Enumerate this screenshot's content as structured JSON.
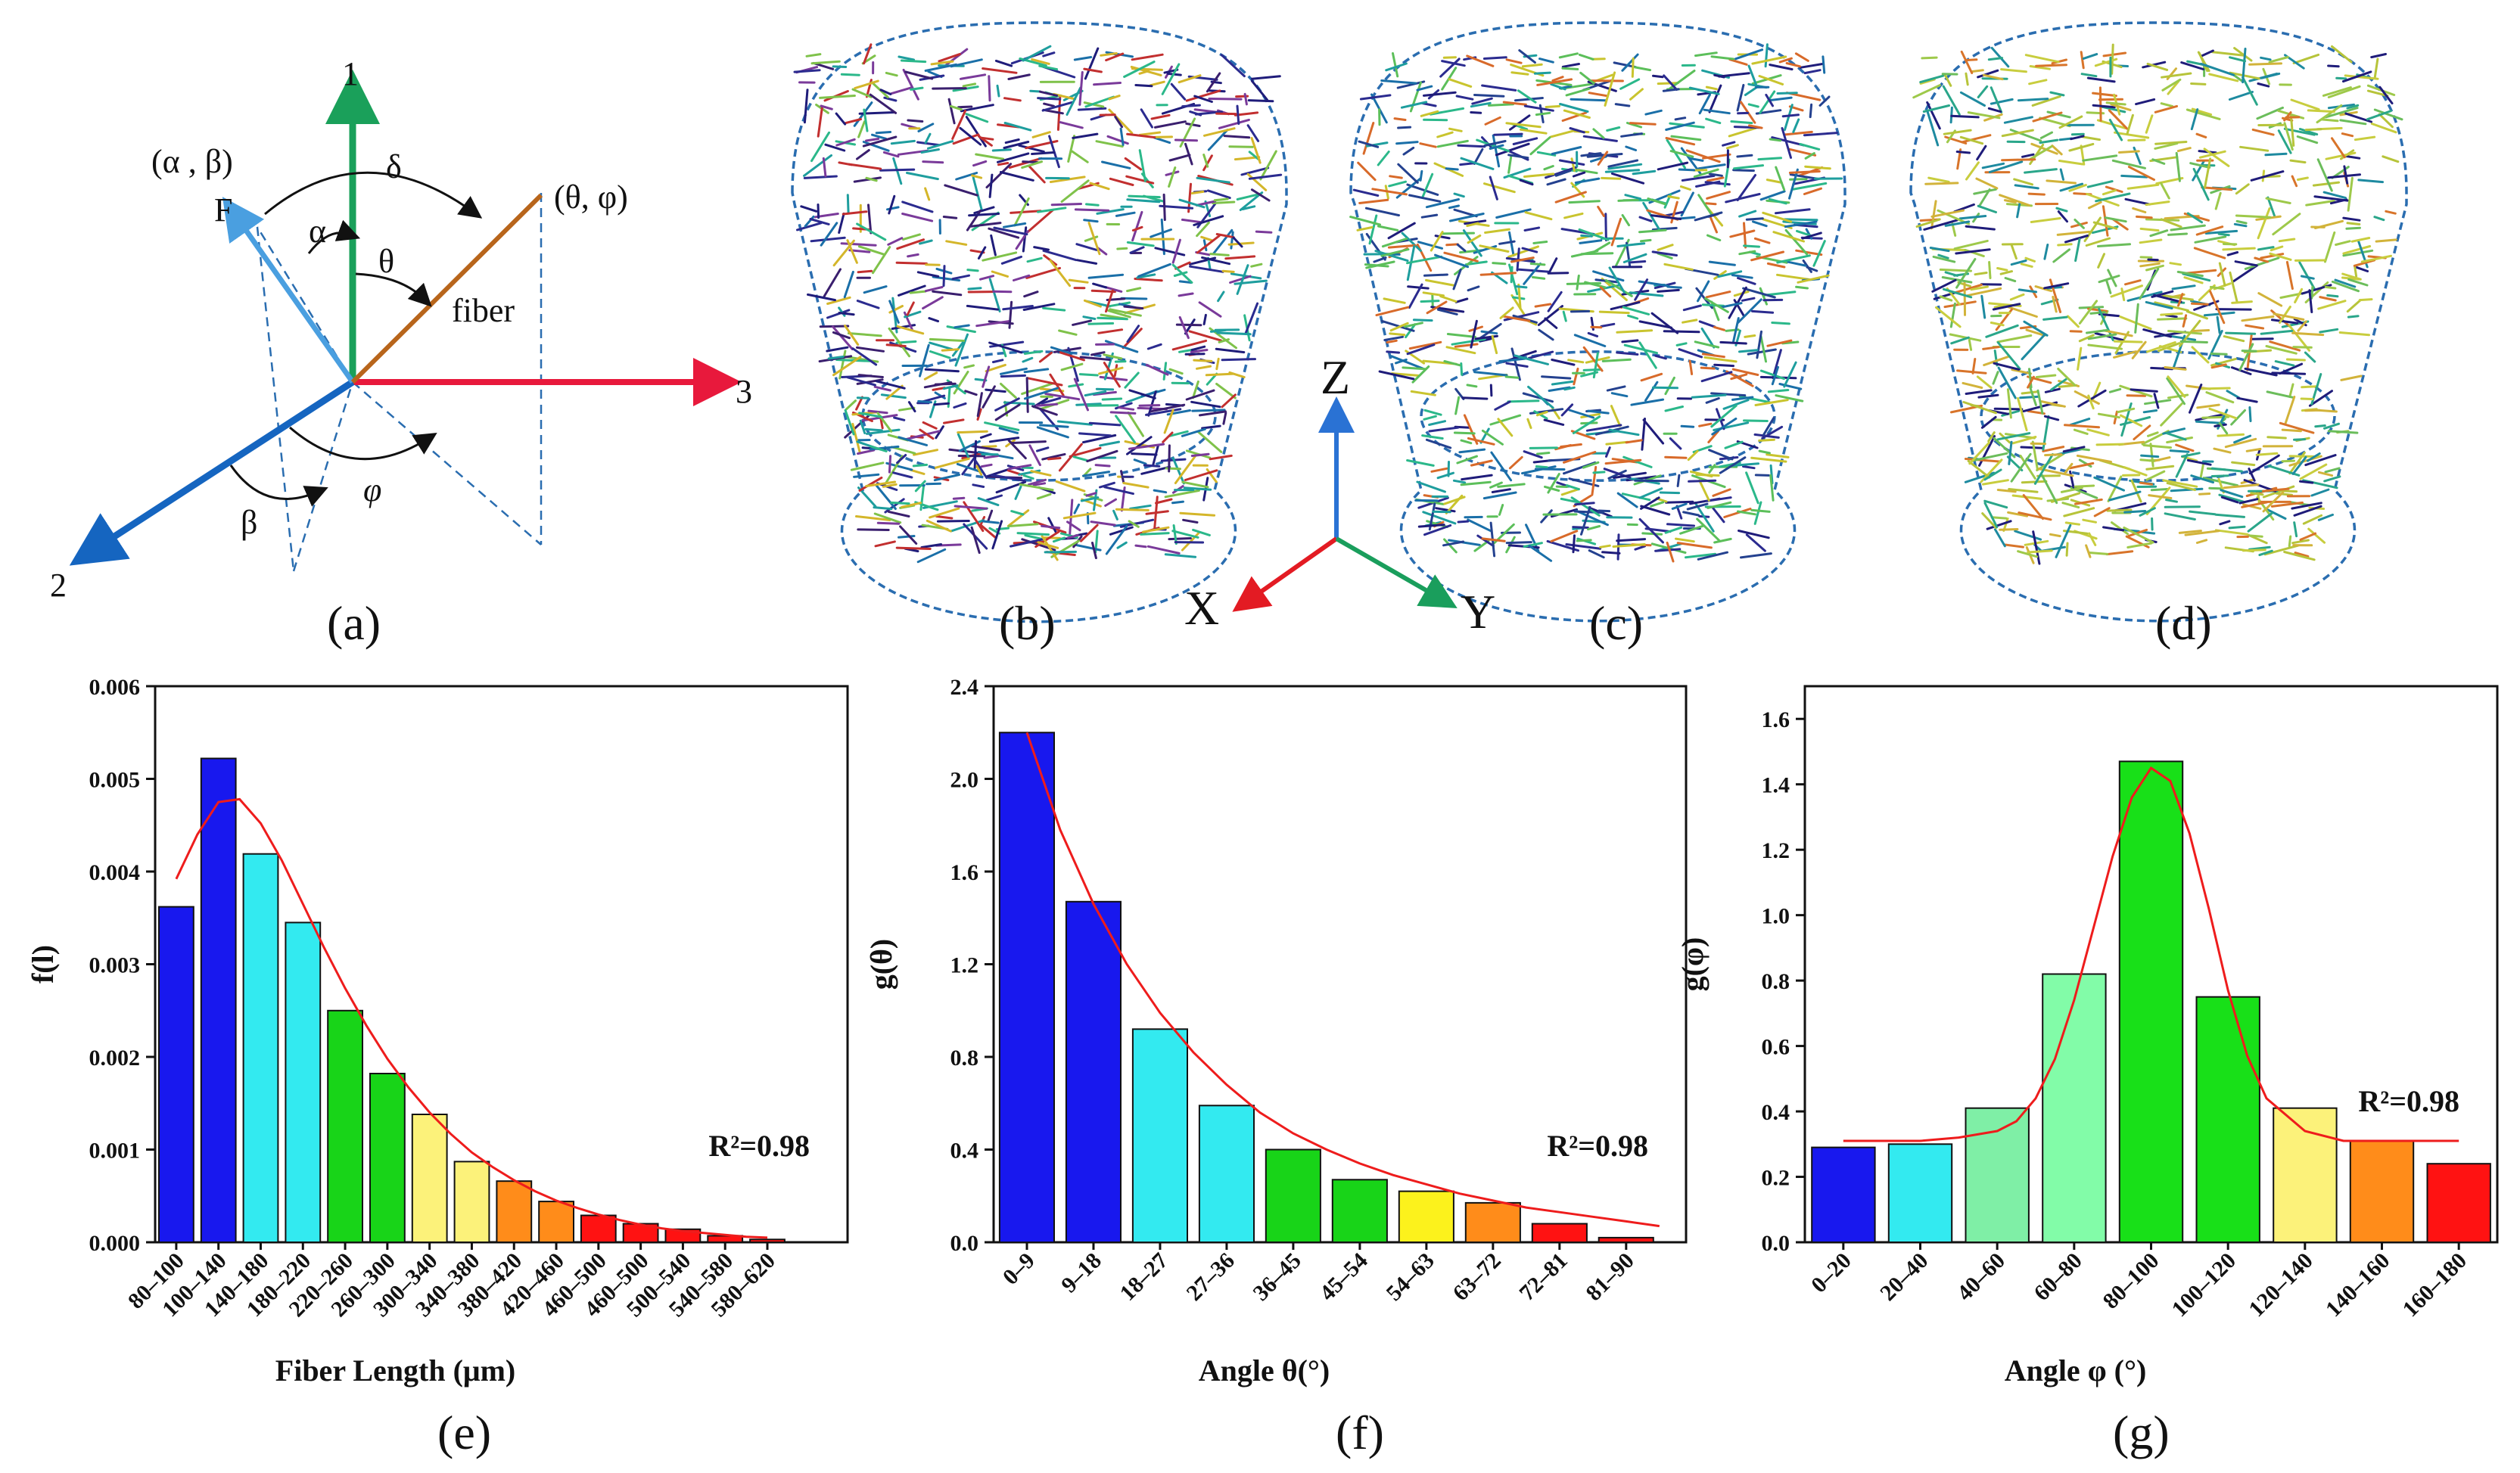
{
  "panel_labels": {
    "a": "(a)",
    "b": "(b)",
    "c": "(c)",
    "d": "(d)",
    "e": "(e)",
    "f": "(f)",
    "g": "(g)"
  },
  "diagram_a": {
    "axis1": "1",
    "axis2": "2",
    "axis3": "3",
    "force_vector": "F",
    "force_angles": "(α , β)",
    "fiber_label": "fiber",
    "fiber_angles": "(θ,  φ)",
    "alpha": "α",
    "beta": "β",
    "theta": "θ",
    "phi": "φ",
    "delta": "δ",
    "colors": {
      "axis1": "#1aa05a",
      "axis2": "#1565c0",
      "axis3": "#e8193c",
      "force": "#4a9fe0",
      "fiber": "#b8651b",
      "guide": "#2a6db0"
    }
  },
  "axes_triad": {
    "z": "Z",
    "x": "X",
    "y": "Y",
    "colors": {
      "z": "#2a72d4",
      "x": "#e31b23",
      "y": "#1a9e5c"
    }
  },
  "fiber_palette": {
    "b": [
      "#1f1c7a",
      "#2b2b8f",
      "#3a1f6e",
      "#1a6fa8",
      "#1e9e9e",
      "#2bb88a",
      "#7fc24a",
      "#d4b62a",
      "#c22f2f",
      "#7a3a9a"
    ],
    "c": [
      "#1f1c7a",
      "#2b2b8f",
      "#24418f",
      "#1a6fa8",
      "#1e9e9e",
      "#2bb88a",
      "#5cbf5a",
      "#c9c42e",
      "#d86a2a"
    ],
    "d": [
      "#b7c43a",
      "#c8cd3e",
      "#9ec94a",
      "#d2b33a",
      "#6bbd5b",
      "#2aa68a",
      "#1e8aa0",
      "#1f1c7a",
      "#d8742a"
    ]
  },
  "chart_data": [
    {
      "id": "e",
      "type": "bar",
      "ylabel": "f(l)",
      "xlabel": "Fiber Length (μm)",
      "categories": [
        "80–100",
        "100–140",
        "140–180",
        "180–220",
        "220–260",
        "260–300",
        "300–340",
        "340–380",
        "380–420",
        "420–460",
        "460–500",
        "460–500",
        "500–540",
        "540–580",
        "580–620"
      ],
      "values": [
        0.00362,
        0.00522,
        0.00419,
        0.00345,
        0.0025,
        0.00182,
        0.00138,
        0.00087,
        0.00066,
        0.00044,
        0.00029,
        0.0002,
        0.00014,
        7e-05,
        3e-05
      ],
      "bar_colors": [
        "#1818ee",
        "#1818ee",
        "#33eaf0",
        "#33eaf0",
        "#18d418",
        "#18d418",
        "#fcf27a",
        "#fcf27a",
        "#ff8c1a",
        "#ff8c1a",
        "#ff1212",
        "#ff1212",
        "#ff1212",
        "#ff1212",
        "#ff1212"
      ],
      "fit": {
        "x": [
          0,
          0.5,
          1,
          1.5,
          2,
          2.5,
          3,
          3.5,
          4,
          4.5,
          5,
          5.5,
          6,
          6.5,
          7,
          7.5,
          8,
          8.5,
          9,
          9.5,
          10,
          10.5,
          11,
          11.5,
          12,
          12.5,
          13,
          13.5,
          14
        ],
        "y": [
          0.00392,
          0.0044,
          0.00475,
          0.00478,
          0.00452,
          0.00412,
          0.00365,
          0.00318,
          0.00274,
          0.00234,
          0.00198,
          0.00167,
          0.0014,
          0.00117,
          0.00097,
          0.00081,
          0.00067,
          0.00055,
          0.00045,
          0.00037,
          0.0003,
          0.00024,
          0.00019,
          0.00015,
          0.00012,
          0.0001,
          8e-05,
          6e-05,
          5e-05
        ]
      },
      "ylim": [
        0,
        0.006
      ],
      "yticks": [
        0.0,
        0.001,
        0.002,
        0.003,
        0.004,
        0.005,
        0.006
      ],
      "ytick_labels": [
        "0.000",
        "0.001",
        "0.002",
        "0.003",
        "0.004",
        "0.005",
        "0.006"
      ],
      "x_extent": 16.4,
      "annotation": "R²=0.98"
    },
    {
      "id": "f",
      "type": "bar",
      "ylabel": "g(θ)",
      "xlabel": "Angle θ(°)",
      "categories": [
        "0–9",
        "9–18",
        "18–27",
        "27–36",
        "36–45",
        "45–54",
        "54–63",
        "63–72",
        "72–81",
        "81–90"
      ],
      "values": [
        2.2,
        1.47,
        0.92,
        0.59,
        0.4,
        0.27,
        0.22,
        0.17,
        0.08,
        0.02
      ],
      "bar_colors": [
        "#1818ee",
        "#1818ee",
        "#33eaf0",
        "#33eaf0",
        "#18d418",
        "#18d418",
        "#fcf21c",
        "#ff8c1a",
        "#ff1212",
        "#ff1212"
      ],
      "fit": {
        "x": [
          0,
          0.5,
          1,
          1.5,
          2,
          2.5,
          3,
          3.5,
          4,
          4.5,
          5,
          5.5,
          6,
          6.5,
          7,
          7.5,
          8,
          8.5,
          9,
          9.5
        ],
        "y": [
          2.2,
          1.78,
          1.46,
          1.2,
          0.99,
          0.82,
          0.68,
          0.56,
          0.47,
          0.4,
          0.34,
          0.29,
          0.25,
          0.21,
          0.18,
          0.15,
          0.13,
          0.11,
          0.09,
          0.07
        ]
      },
      "ylim": [
        0,
        2.4
      ],
      "yticks": [
        0.0,
        0.4,
        0.8,
        1.2,
        1.6,
        2.0,
        2.4
      ],
      "ytick_labels": [
        "0.0",
        "0.4",
        "0.8",
        "1.2",
        "1.6",
        "2.0",
        "2.4"
      ],
      "x_extent": 10.4,
      "annotation": "R²=0.98"
    },
    {
      "id": "g",
      "type": "bar",
      "ylabel": "g(φ)",
      "xlabel": "Angle φ (°)",
      "categories": [
        "0–20",
        "20–40",
        "40–60",
        "60–80",
        "80–100",
        "100–120",
        "120–140",
        "140–160",
        "160–180"
      ],
      "values": [
        0.29,
        0.3,
        0.41,
        0.82,
        1.47,
        0.75,
        0.41,
        0.31,
        0.24
      ],
      "bar_colors": [
        "#1818ee",
        "#33eaf0",
        "#7fefa6",
        "#82fca8",
        "#18e018",
        "#18e018",
        "#fcf27a",
        "#ff8c1a",
        "#ff1212"
      ],
      "fit": {
        "x": [
          0,
          0.5,
          1,
          1.5,
          2,
          2.25,
          2.5,
          2.75,
          3,
          3.25,
          3.5,
          3.75,
          4,
          4.25,
          4.5,
          4.75,
          5,
          5.25,
          5.5,
          6,
          6.5,
          7,
          7.5,
          8
        ],
        "y": [
          0.31,
          0.31,
          0.31,
          0.32,
          0.34,
          0.37,
          0.44,
          0.56,
          0.74,
          0.96,
          1.18,
          1.36,
          1.45,
          1.41,
          1.25,
          1.02,
          0.77,
          0.57,
          0.44,
          0.34,
          0.31,
          0.31,
          0.31,
          0.31
        ]
      },
      "ylim": [
        0,
        1.7
      ],
      "yticks": [
        0.0,
        0.2,
        0.4,
        0.6,
        0.8,
        1.0,
        1.2,
        1.4,
        1.6
      ],
      "ytick_labels": [
        "0.0",
        "0.2",
        "0.4",
        "0.6",
        "0.8",
        "1.0",
        "1.2",
        "1.4",
        "1.6"
      ],
      "x_extent": 9.0,
      "annotation": "R²=0.98"
    }
  ]
}
